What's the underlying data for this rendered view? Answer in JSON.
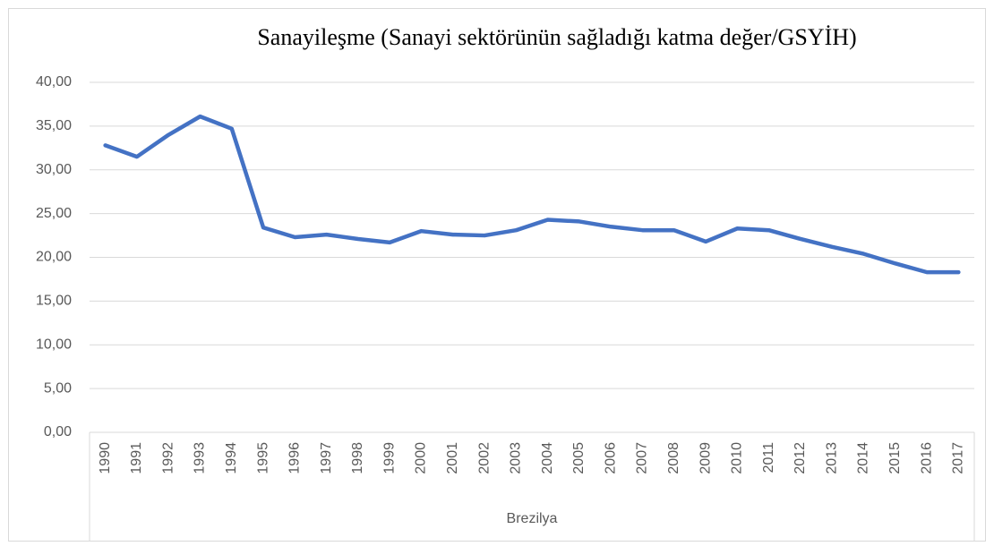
{
  "chart_data": {
    "type": "line",
    "title": "Sanayileşme (Sanayi sektörünün sağladığı katma değer/GSYİH)",
    "x_label": "Brezilya",
    "categories": [
      "1990",
      "1991",
      "1992",
      "1993",
      "1994",
      "1995",
      "1996",
      "1997",
      "1998",
      "1999",
      "2000",
      "2001",
      "2002",
      "2003",
      "2004",
      "2005",
      "2006",
      "2007",
      "2008",
      "2009",
      "2010",
      "2011",
      "2012",
      "2013",
      "2014",
      "2015",
      "2016",
      "2017"
    ],
    "values": [
      32.8,
      31.5,
      34.0,
      36.1,
      34.7,
      23.4,
      22.3,
      22.6,
      22.1,
      21.7,
      23.0,
      22.6,
      22.5,
      23.1,
      24.3,
      24.1,
      23.5,
      23.1,
      23.1,
      21.8,
      23.3,
      23.1,
      22.1,
      21.2,
      20.4,
      19.3,
      18.3,
      18.3
    ],
    "color": "#4472c4",
    "ylim": [
      0,
      40
    ],
    "yticks": [
      {
        "value": 0,
        "label": "0,00"
      },
      {
        "value": 5,
        "label": "5,00"
      },
      {
        "value": 10,
        "label": "10,00"
      },
      {
        "value": 15,
        "label": "15,00"
      },
      {
        "value": 20,
        "label": "20,00"
      },
      {
        "value": 25,
        "label": "25,00"
      },
      {
        "value": 30,
        "label": "30,00"
      },
      {
        "value": 35,
        "label": "35,00"
      },
      {
        "value": 40,
        "label": "40,00"
      }
    ],
    "grid": true
  }
}
